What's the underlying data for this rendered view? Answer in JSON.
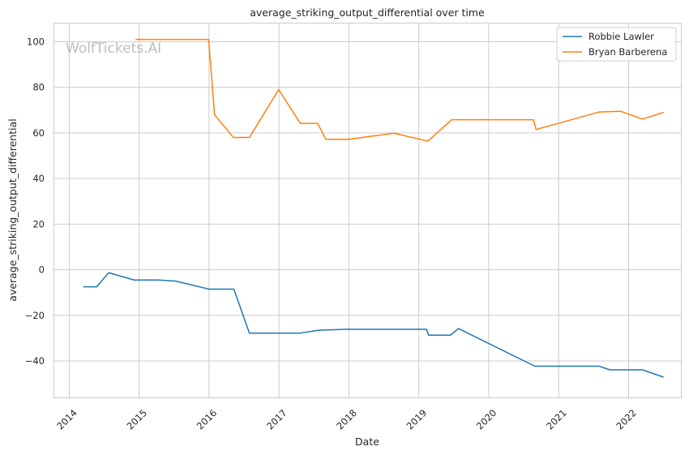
{
  "chart_data": {
    "type": "line",
    "title": "average_striking_output_differential over time",
    "xlabel": "Date",
    "ylabel": "average_striking_output_differential",
    "xlim": [
      "2013-10-15",
      "2022-10-01"
    ],
    "ylim": [
      -56,
      108
    ],
    "x_ticks": [
      "2014",
      "2015",
      "2016",
      "2017",
      "2018",
      "2019",
      "2020",
      "2021",
      "2022"
    ],
    "y_ticks": [
      -40,
      -20,
      0,
      20,
      40,
      60,
      80,
      100
    ],
    "y_tick_labels": [
      "−40",
      "−20",
      "0",
      "20",
      "40",
      "60",
      "80",
      "100"
    ],
    "grid": true,
    "legend_position": "top-right",
    "watermark": "WolfTickets.AI",
    "series": [
      {
        "name": "Robbie Lawler",
        "color": "#1f77b4",
        "points": [
          [
            "2014-03-15",
            -7.5
          ],
          [
            "2014-05-24",
            -7.5
          ],
          [
            "2014-07-26",
            -1.3
          ],
          [
            "2014-12-06",
            -4.5
          ],
          [
            "2015-04-15",
            -4.5
          ],
          [
            "2015-07-11",
            -5.0
          ],
          [
            "2016-01-02",
            -8.5
          ],
          [
            "2016-05-10",
            -8.5
          ],
          [
            "2016-07-30",
            -27.8
          ],
          [
            "2017-04-20",
            -27.8
          ],
          [
            "2017-07-29",
            -26.5
          ],
          [
            "2017-12-16",
            -26.1
          ],
          [
            "2019-02-10",
            -26.1
          ],
          [
            "2019-02-22",
            -28.7
          ],
          [
            "2019-06-15",
            -28.7
          ],
          [
            "2019-07-27",
            -25.8
          ],
          [
            "2020-08-29",
            -42.3
          ],
          [
            "2021-07-31",
            -42.3
          ],
          [
            "2021-09-25",
            -43.9
          ],
          [
            "2022-03-15",
            -43.9
          ],
          [
            "2022-07-02",
            -47.1
          ]
        ]
      },
      {
        "name": "Bryan Barberena",
        "color": "#ff7f0e",
        "points": [
          [
            "2014-12-13",
            101.0
          ],
          [
            "2015-12-30",
            101.0
          ],
          [
            "2016-01-30",
            68.0
          ],
          [
            "2016-05-08",
            58.0
          ],
          [
            "2016-07-30",
            58.0
          ],
          [
            "2016-12-30",
            79.0
          ],
          [
            "2017-04-22",
            64.2
          ],
          [
            "2017-07-22",
            64.2
          ],
          [
            "2017-09-02",
            57.2
          ],
          [
            "2017-12-30",
            57.2
          ],
          [
            "2018-08-25",
            59.9
          ],
          [
            "2019-02-17",
            56.4
          ],
          [
            "2019-06-22",
            65.8
          ],
          [
            "2020-08-22",
            65.8
          ],
          [
            "2020-09-05",
            61.5
          ],
          [
            "2021-07-31",
            69.2
          ],
          [
            "2021-11-20",
            69.5
          ],
          [
            "2022-03-15",
            66.1
          ],
          [
            "2022-07-02",
            69.0
          ]
        ]
      }
    ]
  }
}
